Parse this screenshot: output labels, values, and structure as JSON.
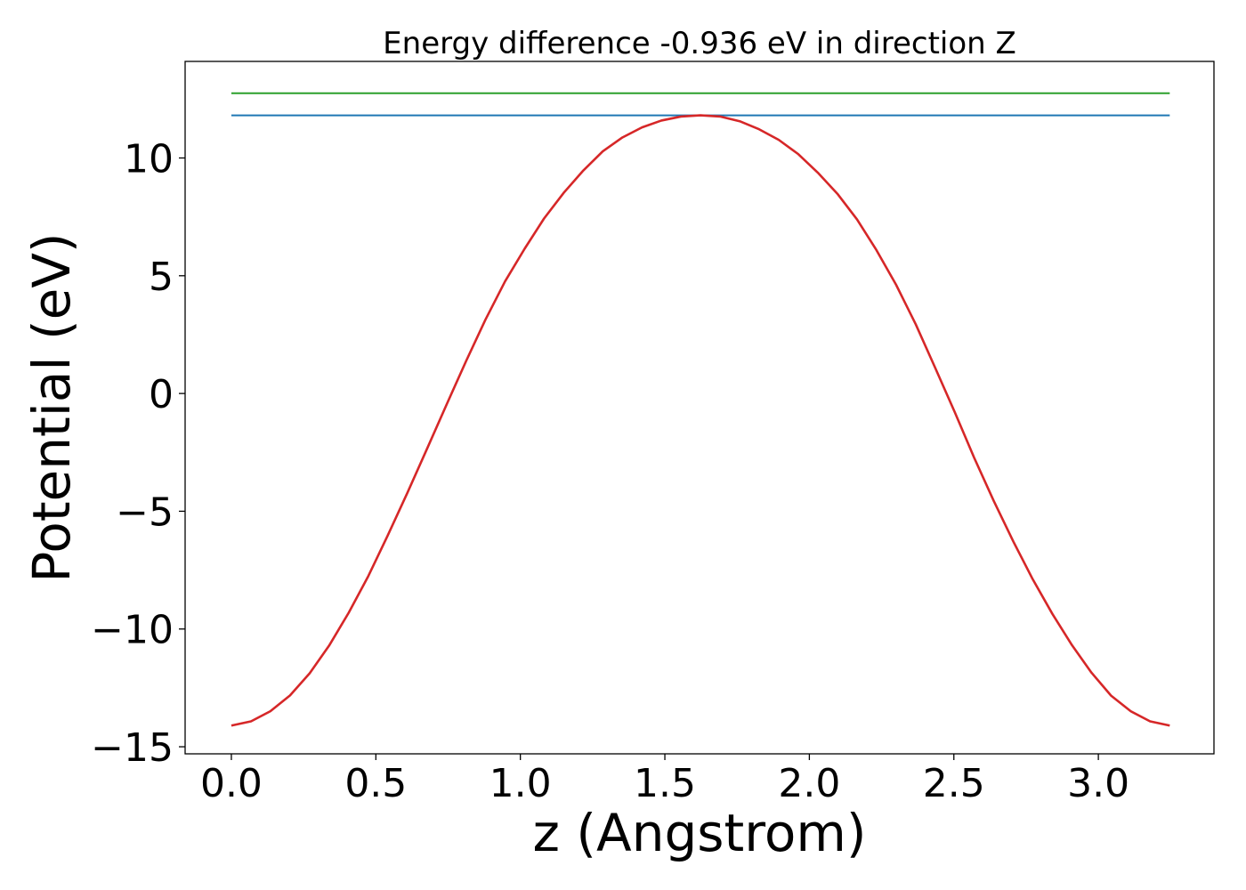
{
  "chart_data": {
    "type": "line",
    "title": "Energy difference -0.936 eV in direction Z",
    "xlabel": "z (Angstrom)",
    "ylabel": "Potential (eV)",
    "xlim": [
      -0.16,
      3.4
    ],
    "ylim": [
      -15.3,
      14.1
    ],
    "x_ticks": [
      0.0,
      0.5,
      1.0,
      1.5,
      2.0,
      2.5,
      3.0
    ],
    "x_tick_labels": [
      "0.0",
      "0.5",
      "1.0",
      "1.5",
      "2.0",
      "2.5",
      "3.0"
    ],
    "y_ticks": [
      -15,
      -10,
      -5,
      0,
      5,
      10
    ],
    "y_tick_labels": [
      "−15",
      "−10",
      "−5",
      "0",
      "5",
      "10"
    ],
    "grid": false,
    "legend": "none",
    "series": [
      {
        "color": "#d62728",
        "x": [
          0.0,
          0.068,
          0.135,
          0.203,
          0.271,
          0.338,
          0.406,
          0.474,
          0.541,
          0.609,
          0.677,
          0.744,
          0.812,
          0.879,
          0.947,
          1.015,
          1.082,
          1.15,
          1.218,
          1.285,
          1.353,
          1.421,
          1.488,
          1.556,
          1.623,
          1.691,
          1.759,
          1.826,
          1.894,
          1.962,
          2.029,
          2.097,
          2.165,
          2.232,
          2.3,
          2.368,
          2.435,
          2.503,
          2.57,
          2.638,
          2.706,
          2.773,
          2.841,
          2.909,
          2.976,
          3.044,
          3.112,
          3.179,
          3.247
        ],
        "values": [
          -14.1,
          -13.92,
          -13.49,
          -12.82,
          -11.88,
          -10.71,
          -9.31,
          -7.75,
          -6.03,
          -4.22,
          -2.35,
          -0.49,
          1.37,
          3.13,
          4.76,
          6.15,
          7.43,
          8.52,
          9.47,
          10.28,
          10.87,
          11.3,
          11.59,
          11.76,
          11.81,
          11.76,
          11.56,
          11.22,
          10.77,
          10.16,
          9.38,
          8.48,
          7.39,
          6.09,
          4.62,
          2.94,
          1.1,
          -0.79,
          -2.72,
          -4.56,
          -6.29,
          -7.89,
          -9.36,
          -10.69,
          -11.85,
          -12.83,
          -13.49,
          -13.92,
          -14.1
        ]
      },
      {
        "color": "#1f77b4",
        "x": [
          0.0,
          3.247
        ],
        "values": [
          11.81,
          11.81
        ]
      },
      {
        "color": "#2ca02c",
        "x": [
          0.0,
          3.247
        ],
        "values": [
          12.75,
          12.75
        ]
      }
    ]
  }
}
